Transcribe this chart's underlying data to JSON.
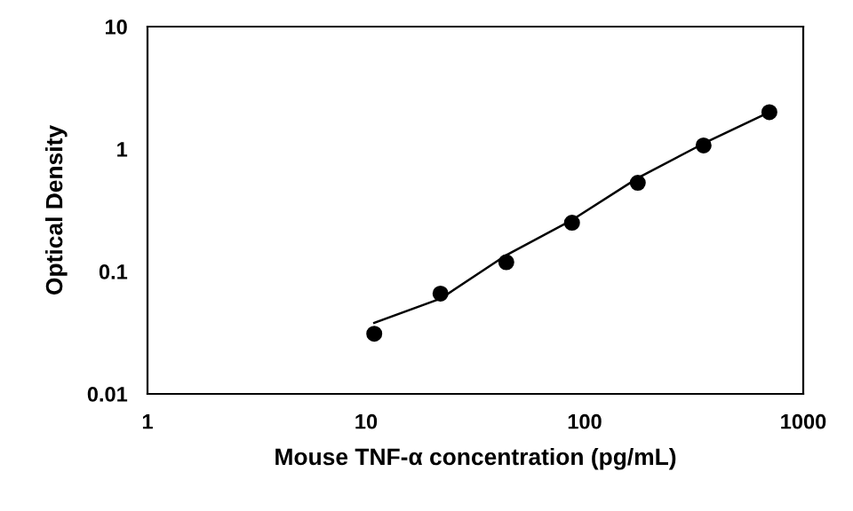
{
  "chart_data": {
    "type": "scatter",
    "xlabel": "Mouse TNF-α concentration (pg/mL)",
    "ylabel": "Optical Density",
    "log": "xy",
    "xlim": [
      1,
      1000
    ],
    "xticks": [
      1,
      10,
      100,
      1000
    ],
    "ylim": [
      0.01,
      10
    ],
    "yticks": [
      0.01,
      0.1,
      1,
      10
    ],
    "grid": false,
    "legend": false,
    "series": [
      {
        "color": "#000000",
        "marker": "circle",
        "x": [
          10.9,
          21.9,
          43.8,
          87.5,
          175,
          350,
          700
        ],
        "values": [
          0.031,
          0.066,
          0.119,
          0.25,
          0.53,
          1.07,
          2.0
        ]
      },
      {
        "type": "line",
        "color": "#000000",
        "marker": "none",
        "line_style": "solid",
        "x": [
          10.9,
          21.9,
          43.8,
          87.5,
          175,
          350,
          700
        ],
        "values": [
          0.038,
          0.06,
          0.136,
          0.263,
          0.58,
          1.11,
          2.0
        ]
      }
    ]
  }
}
